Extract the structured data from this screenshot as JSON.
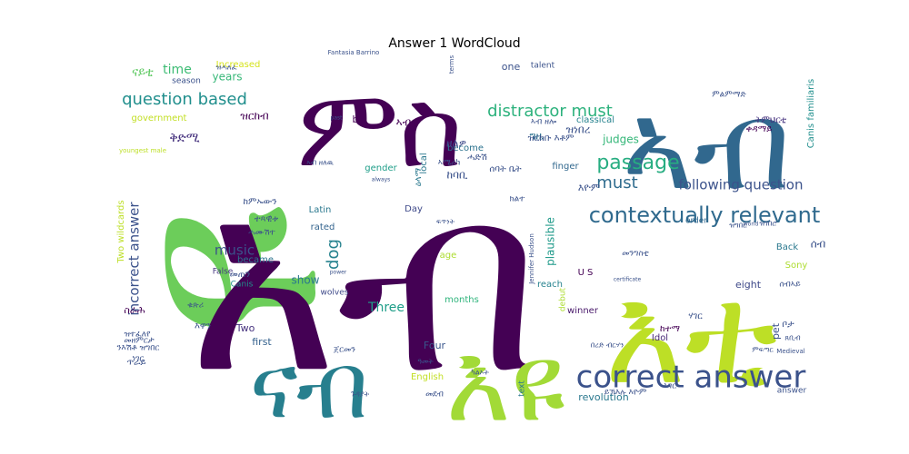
{
  "chart_data": {
    "type": "wordcloud",
    "title": "Answer 1 WordCloud",
    "colormap": "viridis",
    "words": [
      {
        "text": "ዩ",
        "weight": 100,
        "color": "#6ccd5a"
      },
      {
        "text": "አብ",
        "weight": 92,
        "color": "#440154"
      },
      {
        "text": "ምስ",
        "weight": 70,
        "color": "#440154"
      },
      {
        "text": "ኣብ",
        "weight": 70,
        "color": "#31688e"
      },
      {
        "text": "እቲ",
        "weight": 78,
        "color": "#bddf26"
      },
      {
        "text": "እዩ",
        "weight": 62,
        "color": "#a2da37"
      },
      {
        "text": "ናብ",
        "weight": 58,
        "color": "#277f8e"
      },
      {
        "text": "correct answer",
        "weight": 30,
        "color": "#3b528b"
      },
      {
        "text": "contextually relevant",
        "weight": 22,
        "color": "#306a8e"
      },
      {
        "text": "distractor must",
        "weight": 18,
        "color": "#2db27d"
      },
      {
        "text": "question based",
        "weight": 16,
        "color": "#218f8d"
      },
      {
        "text": "passage",
        "weight": 18,
        "color": "#27ad81"
      },
      {
        "text": "must",
        "weight": 16,
        "color": "#2f6c8e"
      },
      {
        "text": "following question",
        "weight": 13,
        "color": "#3b528b"
      },
      {
        "text": "incorrect answer",
        "weight": 13,
        "color": "#3b528b"
      },
      {
        "text": "music",
        "weight": 13,
        "color": "#3b528b"
      },
      {
        "text": "dog",
        "weight": 14,
        "color": "#26828e"
      },
      {
        "text": "Three",
        "weight": 12,
        "color": "#1f9e89"
      },
      {
        "text": "time",
        "weight": 13,
        "color": "#3dbc74"
      },
      {
        "text": "years",
        "weight": 11,
        "color": "#37b878"
      },
      {
        "text": "show",
        "weight": 11,
        "color": "#2a788e"
      },
      {
        "text": "first",
        "weight": 10,
        "color": "#34618d"
      },
      {
        "text": "Two",
        "weight": 10,
        "color": "#46327e"
      },
      {
        "text": "Four",
        "weight": 10,
        "color": "#39568c"
      },
      {
        "text": "English",
        "weight": 9,
        "color": "#c2df23"
      },
      {
        "text": "government",
        "weight": 9,
        "color": "#c2df23"
      },
      {
        "text": "Increased",
        "weight": 8,
        "color": "#d5e21a"
      },
      {
        "text": "season",
        "weight": 8,
        "color": "#3b528b"
      },
      {
        "text": "Two wildcards",
        "weight": 8,
        "color": "#bddf26"
      },
      {
        "text": "youngest male",
        "weight": 6,
        "color": "#bddf26"
      },
      {
        "text": "Fantasia Barrino",
        "weight": 6,
        "color": "#3b528b"
      },
      {
        "text": "Latin",
        "weight": 9,
        "color": "#2a788e"
      },
      {
        "text": "rated",
        "weight": 9,
        "color": "#33638d"
      },
      {
        "text": "became",
        "weight": 9,
        "color": "#2c728e"
      },
      {
        "text": "False",
        "weight": 8,
        "color": "#453781"
      },
      {
        "text": "Canis",
        "weight": 8,
        "color": "#21918c"
      },
      {
        "text": "wolves",
        "weight": 8,
        "color": "#3e4989"
      },
      {
        "text": "gender",
        "weight": 9,
        "color": "#1f9e89"
      },
      {
        "text": "local",
        "weight": 9,
        "color": "#2a788e"
      },
      {
        "text": "Day",
        "weight": 9,
        "color": "#3e4989"
      },
      {
        "text": "age",
        "weight": 8,
        "color": "#addc30"
      },
      {
        "text": "months",
        "weight": 9,
        "color": "#2fb47c"
      },
      {
        "text": "U S",
        "weight": 9,
        "color": "#440154"
      },
      {
        "text": "reach",
        "weight": 9,
        "color": "#26828e"
      },
      {
        "text": "debut",
        "weight": 8,
        "color": "#addc30"
      },
      {
        "text": "winner",
        "weight": 9,
        "color": "#48186a"
      },
      {
        "text": "plausible",
        "weight": 10,
        "color": "#1f9a8a"
      },
      {
        "text": "finger",
        "weight": 9,
        "color": "#31688e"
      },
      {
        "text": "become",
        "weight": 9,
        "color": "#2c728e"
      },
      {
        "text": "judges",
        "weight": 10,
        "color": "#35b779"
      },
      {
        "text": "talent",
        "weight": 8,
        "color": "#3b528b"
      },
      {
        "text": "one",
        "weight": 9,
        "color": "#3b528b"
      },
      {
        "text": "classical",
        "weight": 9,
        "color": "#26828e"
      },
      {
        "text": "b",
        "weight": 9,
        "color": "#440154"
      },
      {
        "text": "terms",
        "weight": 6,
        "color": "#3b528b"
      },
      {
        "text": "text",
        "weight": 8,
        "color": "#2a788e"
      },
      {
        "text": "revolution",
        "weight": 9,
        "color": "#2a788e"
      },
      {
        "text": "Idol",
        "weight": 9,
        "color": "#482677"
      },
      {
        "text": "order",
        "weight": 8,
        "color": "#31688e"
      },
      {
        "text": "pet",
        "weight": 9,
        "color": "#3b528b"
      },
      {
        "text": "Back",
        "weight": 8,
        "color": "#2a788e"
      },
      {
        "text": "Sony",
        "weight": 8,
        "color": "#addc30"
      },
      {
        "text": "eight",
        "weight": 9,
        "color": "#3e4989"
      },
      {
        "text": "answer",
        "weight": 8,
        "color": "#3b528b"
      },
      {
        "text": "Medieval",
        "weight": 6,
        "color": "#3b528b"
      },
      {
        "text": "Canis familiaris",
        "weight": 8,
        "color": "#218f8d"
      },
      {
        "text": "world",
        "weight": 5,
        "color": "#3b528b"
      },
      {
        "text": "always",
        "weight": 5,
        "color": "#3b528b"
      },
      {
        "text": "past",
        "weight": 5,
        "color": "#3b528b"
      },
      {
        "text": "power",
        "weight": 5,
        "color": "#3b528b"
      },
      {
        "text": "certificate",
        "weight": 5,
        "color": "#3b528b"
      },
      {
        "text": "Jennifer Hudson",
        "weight": 6,
        "color": "#3b528b"
      },
      {
        "text": "ዝርከብ",
        "weight": 10,
        "color": "#440154"
      },
      {
        "text": "ናይቲ",
        "weight": 10,
        "color": "#5ec962"
      },
      {
        "text": "ዕላማ",
        "weight": 10,
        "color": "#2a788e"
      },
      {
        "text": "ቅድሚ",
        "weight": 12,
        "color": "#46327e"
      },
      {
        "text": "ዘለዎ",
        "weight": 11,
        "color": "#3e4989"
      },
      {
        "text": "ኣብቲ",
        "weight": 11,
        "color": "#440154"
      },
      {
        "text": "ከባቢ",
        "weight": 11,
        "color": "#3b528b"
      },
      {
        "text": "ግዜ",
        "weight": 11,
        "color": "#2c728e"
      },
      {
        "text": "ዝነበረ",
        "weight": 10,
        "color": "#3b528b"
      },
      {
        "text": "ቀዳማይ",
        "weight": 9,
        "color": "#440154"
      },
      {
        "text": "ትምህርቲ",
        "weight": 9,
        "color": "#46327e"
      },
      {
        "text": "ምልምማድ",
        "weight": 8,
        "color": "#3b528b"
      },
      {
        "text": "እዋን",
        "weight": 9,
        "color": "#3b528b"
      },
      {
        "text": "ዝርከቡ እቶም",
        "weight": 9,
        "color": "#3b528b"
      },
      {
        "text": "ሰብ",
        "weight": 11,
        "color": "#3b528b"
      },
      {
        "text": "ሓድሽ",
        "weight": 9,
        "color": "#3b528b"
      },
      {
        "text": "ሰባት ቤት",
        "weight": 9,
        "color": "#3b528b"
      },
      {
        "text": "እዮም",
        "weight": 10,
        "color": "#3b528b"
      },
      {
        "text": "መንግስቲ",
        "weight": 8,
        "color": "#3b528b"
      },
      {
        "text": "ሃገር",
        "weight": 9,
        "color": "#3b528b"
      },
      {
        "text": "ከተማ",
        "weight": 9,
        "color": "#440154"
      },
      {
        "text": "ቦታ",
        "weight": 9,
        "color": "#3b528b"
      },
      {
        "text": "ከምኡውን",
        "weight": 9,
        "color": "#3b528b"
      },
      {
        "text": "ተጻዊቱ",
        "weight": 9,
        "color": "#3b528b"
      },
      {
        "text": "ሓሙሽተ",
        "weight": 8,
        "color": "#3b528b"
      },
      {
        "text": "መጠን",
        "weight": 9,
        "color": "#3b528b"
      },
      {
        "text": "ነገር",
        "weight": 9,
        "color": "#3b528b"
      },
      {
        "text": "ስራሕ",
        "weight": 9,
        "color": "#440154"
      },
      {
        "text": "ጥራይ",
        "weight": 9,
        "color": "#3b528b"
      },
      {
        "text": "መዘምርታ",
        "weight": 8,
        "color": "#3b528b"
      },
      {
        "text": "ንእሽቶ ዝግበር",
        "weight": 8,
        "color": "#3b528b"
      },
      {
        "text": "ዝተፈለየ",
        "weight": 8,
        "color": "#3b528b"
      },
      {
        "text": "ካልኦት",
        "weight": 8,
        "color": "#3b528b"
      },
      {
        "text": "ዓመት",
        "weight": 8,
        "color": "#3b528b"
      },
      {
        "text": "ጀርመን",
        "weight": 8,
        "color": "#3b528b"
      },
      {
        "text": "ኣሜሪካ",
        "weight": 8,
        "color": "#3b528b"
      },
      {
        "text": "ክልተ",
        "weight": 8,
        "color": "#3b528b"
      },
      {
        "text": "ፍጥነት",
        "weight": 7,
        "color": "#3b528b"
      },
      {
        "text": "ጉዳያት",
        "weight": 7,
        "color": "#3b528b"
      },
      {
        "text": "ዝሓለፈ",
        "weight": 7,
        "color": "#3b528b"
      },
      {
        "text": "ይኽእሉ እዮም",
        "weight": 8,
        "color": "#3b528b"
      },
      {
        "text": "መደብ",
        "weight": 8,
        "color": "#3b528b"
      },
      {
        "text": "ኣገር",
        "weight": 8,
        "color": "#3b528b"
      },
      {
        "text": "ሰብኣይ",
        "weight": 8,
        "color": "#3b528b"
      },
      {
        "text": "በረድ ብርሃን",
        "weight": 7,
        "color": "#3b528b"
      },
      {
        "text": "ዝገበሮ",
        "weight": 7,
        "color": "#3b528b"
      },
      {
        "text": "ቁጽሪ",
        "weight": 7,
        "color": "#3b528b"
      },
      {
        "text": "ምፍጣር",
        "weight": 7,
        "color": "#3b528b"
      },
      {
        "text": "ኣብ ዘሎ",
        "weight": 8,
        "color": "#3b528b"
      },
      {
        "text": "ኣብ ዘለዉ",
        "weight": 8,
        "color": "#3b528b"
      },
      {
        "text": "ዝግበር",
        "weight": 7,
        "color": "#3b528b"
      },
      {
        "text": "ጸቢብ",
        "weight": 7,
        "color": "#3b528b"
      }
    ]
  }
}
